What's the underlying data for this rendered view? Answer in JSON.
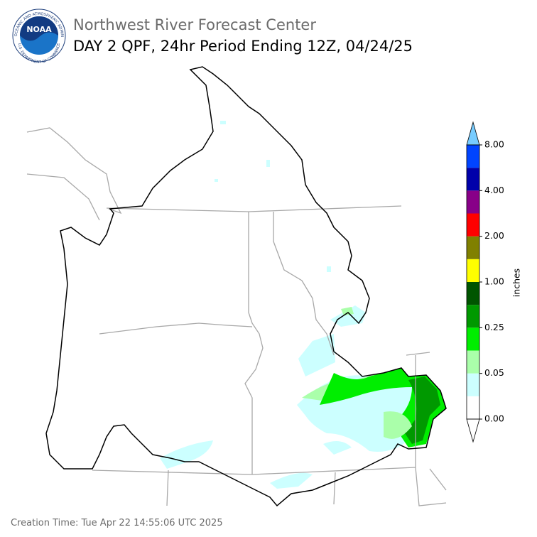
{
  "header": {
    "title": "Northwest River Forecast Center",
    "subtitle": "DAY 2 QPF, 24hr Period Ending 12Z, 04/24/25"
  },
  "logo": {
    "text": "NOAA",
    "ring_top": "NATIONAL OCEANIC AND ATMOSPHERIC ADMINISTRATION",
    "ring_bottom": "U.S. DEPARTMENT OF COMMERCE"
  },
  "colorbar": {
    "label": "inches",
    "colors": [
      "#ffffff",
      "#ccffff",
      "#aaffaa",
      "#00ee00",
      "#009900",
      "#005500",
      "#ffff00",
      "#808000",
      "#ff0000",
      "#880088",
      "#0000aa",
      "#0044ff"
    ],
    "under_color": "#ffffff",
    "over_color": "#77ccff",
    "ticks": [
      {
        "value": 0,
        "label": "0.00"
      },
      {
        "value": 0.05,
        "label": "0.05"
      },
      {
        "value": 0.25,
        "label": "0.25"
      },
      {
        "value": 1,
        "label": "1.00"
      },
      {
        "value": 2,
        "label": "2.00"
      },
      {
        "value": 4,
        "label": "4.00"
      },
      {
        "value": 8,
        "label": "8.00"
      }
    ]
  },
  "footer": {
    "creation_time": "Creation Time: Tue Apr 22 14:55:06 UTC 2025"
  }
}
